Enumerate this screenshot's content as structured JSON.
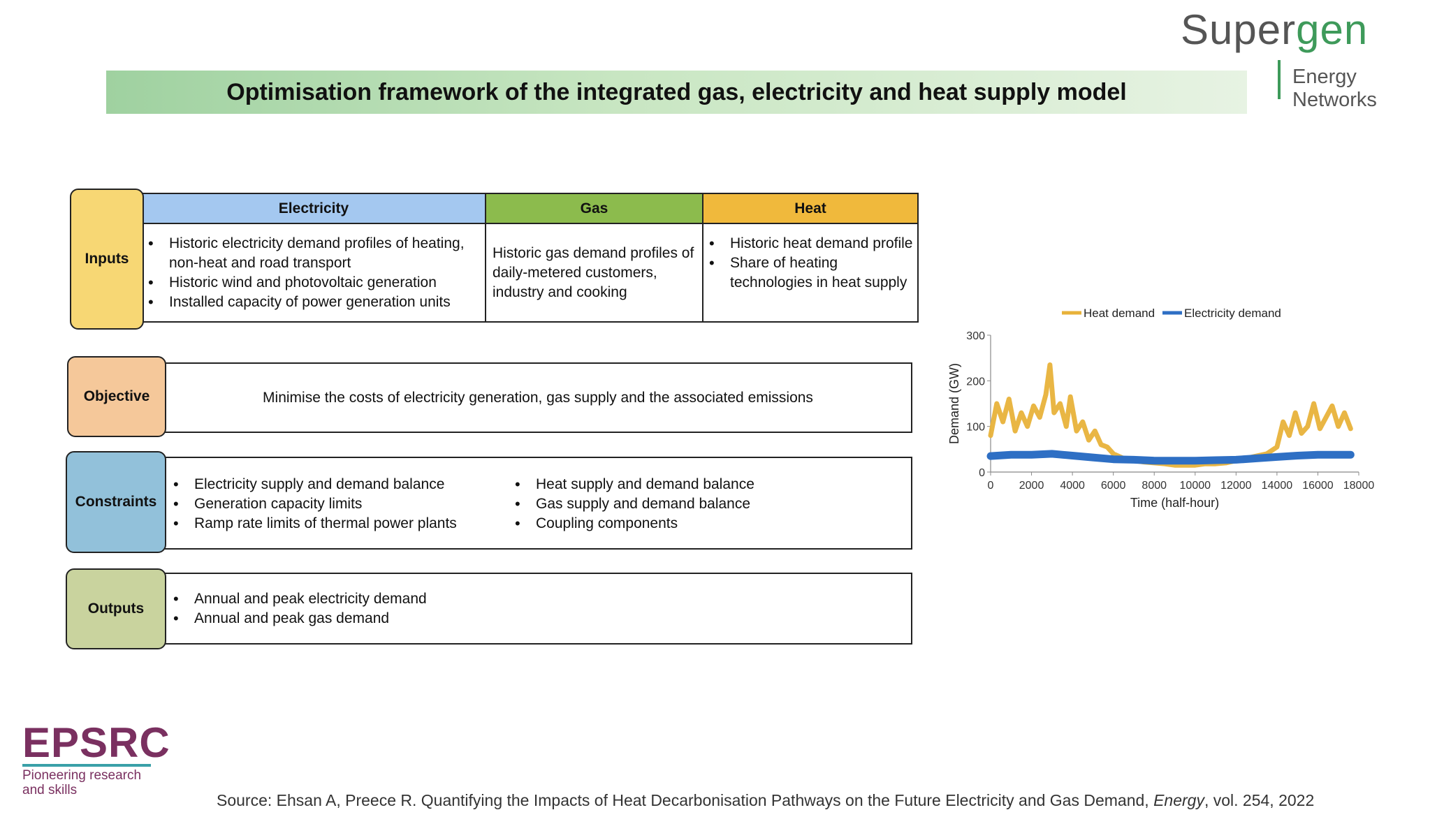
{
  "branding": {
    "supergen_part1": "Super",
    "supergen_part2": "gen",
    "energy_networks": "Energy Networks",
    "epsrc": "EPSRC",
    "epsrc_tagline_1": "Pioneering research",
    "epsrc_tagline_2": "and skills"
  },
  "title": "Optimisation framework of the integrated gas, electricity and heat supply model",
  "inputs": {
    "label": "Inputs",
    "columns": [
      {
        "header": "Electricity",
        "color": "#a4c8f0",
        "bullets": [
          "Historic electricity demand profiles of heating, non-heat and road transport",
          "Historic wind and photovoltaic generation",
          "Installed capacity of power generation units"
        ]
      },
      {
        "header": "Gas",
        "color": "#8cbb4d",
        "text": "Historic gas demand profiles of daily-metered customers, industry and cooking"
      },
      {
        "header": "Heat",
        "color": "#f0b93c",
        "bullets": [
          "Historic heat demand profile",
          "Share of heating technologies in heat supply"
        ]
      }
    ]
  },
  "objective": {
    "label": "Objective",
    "text": "Minimise the costs of electricity generation, gas supply and the associated emissions"
  },
  "constraints": {
    "label": "Constraints",
    "left": [
      "Electricity supply and demand balance",
      "Generation capacity limits",
      "Ramp rate limits of thermal power plants"
    ],
    "right": [
      "Heat supply and demand balance",
      "Gas supply and demand balance",
      "Coupling components"
    ]
  },
  "outputs": {
    "label": "Outputs",
    "bullets": [
      "Annual and peak electricity demand",
      "Annual and peak gas demand"
    ]
  },
  "colors": {
    "inputs_label": "#f7d774",
    "objective_label": "#f5c89a",
    "constraints_label": "#92c1da",
    "outputs_label": "#c9d39e",
    "heat_series": "#e8b23a",
    "electricity_series": "#2e6fc4"
  },
  "chart_data": {
    "type": "line",
    "xlabel": "Time (half-hour)",
    "ylabel": "Demand (GW)",
    "xlim": [
      0,
      18000
    ],
    "ylim": [
      0,
      300
    ],
    "xticks": [
      0,
      2000,
      4000,
      6000,
      8000,
      10000,
      12000,
      14000,
      16000,
      18000
    ],
    "yticks": [
      0,
      100,
      200,
      300
    ],
    "legend_position": "top",
    "grid": false,
    "series": [
      {
        "name": "Heat demand",
        "color": "#e8b23a",
        "x": [
          0,
          300,
          600,
          900,
          1200,
          1500,
          1800,
          2100,
          2400,
          2700,
          2900,
          3100,
          3400,
          3700,
          3900,
          4200,
          4500,
          4800,
          5100,
          5400,
          5700,
          6000,
          6500,
          7000,
          7500,
          8000,
          8500,
          9000,
          9500,
          10000,
          10500,
          11000,
          11500,
          12000,
          12500,
          13000,
          13500,
          14000,
          14300,
          14600,
          14900,
          15200,
          15500,
          15800,
          16100,
          16400,
          16700,
          17000,
          17300,
          17600
        ],
        "y": [
          80,
          150,
          110,
          160,
          90,
          130,
          100,
          145,
          120,
          170,
          235,
          130,
          150,
          100,
          165,
          90,
          110,
          70,
          90,
          60,
          55,
          40,
          30,
          25,
          22,
          20,
          18,
          15,
          15,
          15,
          18,
          18,
          20,
          25,
          30,
          35,
          40,
          55,
          110,
          80,
          130,
          85,
          100,
          150,
          95,
          120,
          145,
          100,
          130,
          95
        ]
      },
      {
        "name": "Electricity demand",
        "color": "#2e6fc4",
        "x": [
          0,
          1000,
          2000,
          3000,
          4000,
          5000,
          6000,
          7000,
          8000,
          9000,
          10000,
          11000,
          12000,
          13000,
          14000,
          15000,
          16000,
          17000,
          17600
        ],
        "y": [
          35,
          38,
          38,
          40,
          36,
          32,
          28,
          27,
          25,
          25,
          25,
          26,
          27,
          30,
          33,
          36,
          38,
          38,
          38
        ]
      }
    ]
  },
  "source": {
    "prefix": "Source: Ehsan A, Preece R. Quantifying the Impacts of Heat Decarbonisation Pathways on the Future Electricity and Gas Demand, ",
    "journal": "Energy",
    "suffix": ", vol. 254, 2022"
  }
}
